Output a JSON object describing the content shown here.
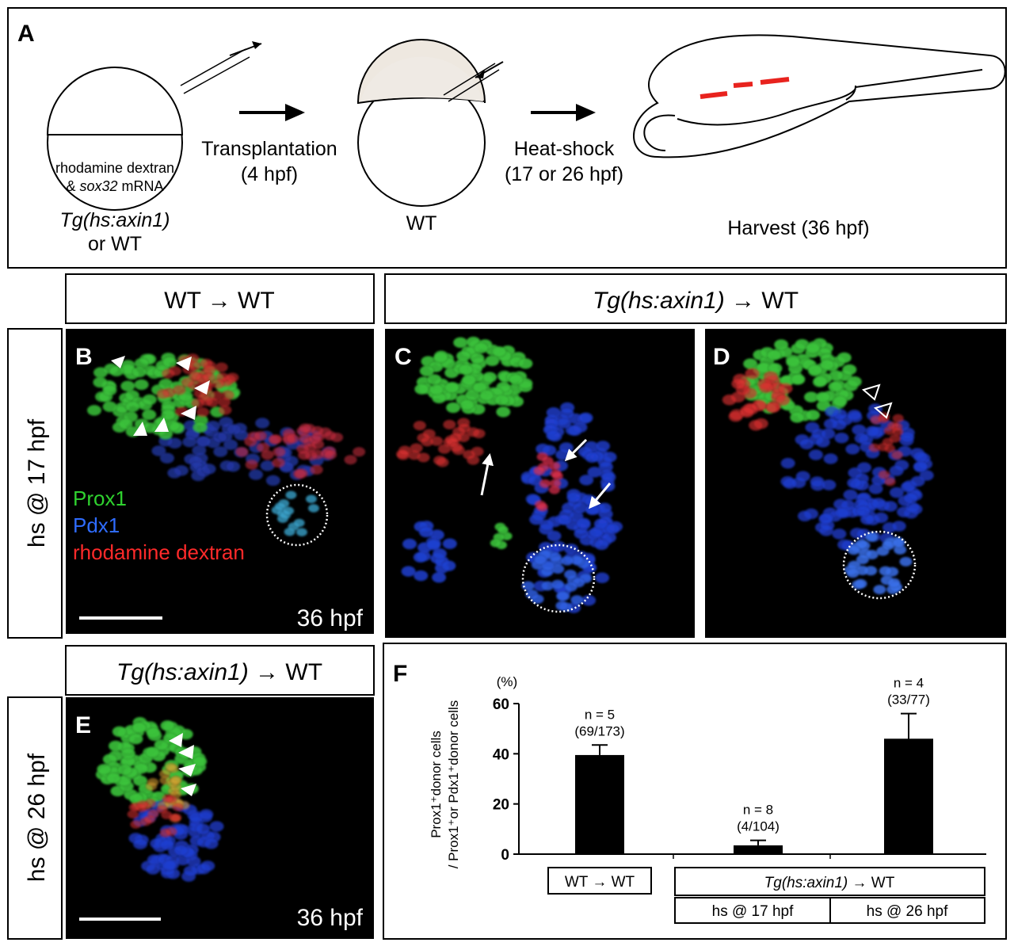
{
  "panel_a": {
    "label": "A",
    "donor_line1": "rhodamine dextran",
    "donor_line2": [
      "& ",
      "sox32",
      " mRNA"
    ],
    "donor_genotype": [
      "Tg(hs:axin1)",
      "or WT"
    ],
    "step1": [
      "Transplantation",
      "(4 hpf)"
    ],
    "host": "WT",
    "step2": [
      "Heat-shock",
      "(17 or 26 hpf)"
    ],
    "harvest": "Harvest (36 hpf)"
  },
  "headers": {
    "wt": "WT → WT",
    "tg": [
      "Tg(hs:axin1)",
      " → WT"
    ]
  },
  "row_labels": [
    "hs @ 17 hpf",
    "hs @ 26 hpf"
  ],
  "panel_labels": [
    "B",
    "C",
    "D",
    "E",
    "F"
  ],
  "legend": [
    "Prox1",
    "Pdx1",
    "rhodamine dextran"
  ],
  "stage_labels": [
    "36 hpf",
    "36 hpf"
  ],
  "chart_data": {
    "type": "bar",
    "y_label": [
      "Prox1⁺donor cells",
      "/ Prox1⁺or Pdx1⁺donor cells"
    ],
    "y_unit": "(%)",
    "categories": [
      "WT → WT",
      "hs @ 17 hpf",
      "hs @ 26 hpf"
    ],
    "group_label": [
      "Tg(hs:axin1)",
      " → WT"
    ],
    "values": [
      39.5,
      3.5,
      46
    ],
    "errors": [
      4,
      2,
      10
    ],
    "annotations": [
      [
        "n = 5",
        "(69/173)"
      ],
      [
        "n = 8",
        "(4/104)"
      ],
      [
        "n = 4",
        "(33/77)"
      ]
    ],
    "color": "#000000",
    "ylim": [
      0,
      60
    ],
    "yticks": [
      0,
      20,
      40,
      60
    ]
  }
}
